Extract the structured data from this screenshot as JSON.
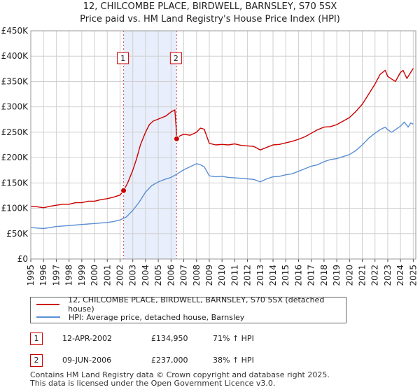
{
  "title": {
    "line1": "12, CHILCOMBE PLACE, BIRDWELL, BARNSLEY, S70 5SX",
    "line2": "Price paid vs. HM Land Registry's House Price Index (HPI)"
  },
  "legend": {
    "property": "12, CHILCOMBE PLACE, BIRDWELL, BARNSLEY, S70 5SX (detached house)",
    "hpi": "HPI: Average price, detached house, Barnsley"
  },
  "colors": {
    "property": "#cc0000",
    "hpi": "#5b8fd4",
    "shade": "#e8eefb",
    "grid": "#d0d0d0"
  },
  "transactions": [
    {
      "num": "1",
      "date": "12-APR-2002",
      "price": "£134,950",
      "hpi_change": "71% ↑ HPI"
    },
    {
      "num": "2",
      "date": "09-JUN-2006",
      "price": "£237,000",
      "hpi_change": "38% ↑ HPI"
    }
  ],
  "footer": {
    "line1": "Contains HM Land Registry data © Crown copyright and database right 2025.",
    "line2": "This data is licensed under the Open Government Licence v3.0."
  },
  "chart_data": {
    "type": "line",
    "title": "12, CHILCOMBE PLACE, BIRDWELL, BARNSLEY, S70 5SX",
    "subtitle": "Price paid vs. HM Land Registry's House Price Index (HPI)",
    "xlabel": "",
    "ylabel": "",
    "xlim": [
      1995,
      2025.2
    ],
    "ylim": [
      0,
      450000
    ],
    "x_ticks": [
      1995,
      1996,
      1997,
      1998,
      1999,
      2000,
      2001,
      2002,
      2003,
      2004,
      2005,
      2006,
      2007,
      2008,
      2009,
      2010,
      2011,
      2012,
      2013,
      2014,
      2015,
      2016,
      2017,
      2018,
      2019,
      2020,
      2021,
      2022,
      2023,
      2024,
      2025
    ],
    "y_ticks": [
      {
        "value": 0,
        "label": "£0"
      },
      {
        "value": 50000,
        "label": "£50K"
      },
      {
        "value": 100000,
        "label": "£100K"
      },
      {
        "value": 150000,
        "label": "£150K"
      },
      {
        "value": 200000,
        "label": "£200K"
      },
      {
        "value": 250000,
        "label": "£250K"
      },
      {
        "value": 300000,
        "label": "£300K"
      },
      {
        "value": 350000,
        "label": "£350K"
      },
      {
        "value": 400000,
        "label": "£400K"
      },
      {
        "value": 450000,
        "label": "£450K"
      }
    ],
    "grid": true,
    "shaded_range": [
      2002.28,
      2006.44
    ],
    "markers": [
      {
        "label": "1",
        "x": 2002.28,
        "y": 134950
      },
      {
        "label": "2",
        "x": 2006.44,
        "y": 237000
      }
    ],
    "series": [
      {
        "name": "12, CHILCOMBE PLACE, BIRDWELL, BARNSLEY, S70 5SX (detached house)",
        "x": [
          1995,
          1995.5,
          1996,
          1996.5,
          1997,
          1997.5,
          1998,
          1998.5,
          1999,
          1999.5,
          2000,
          2000.5,
          2001,
          2001.5,
          2002,
          2002.28,
          2002.6,
          2003,
          2003.3,
          2003.6,
          2004,
          2004.3,
          2004.6,
          2005,
          2005.3,
          2005.6,
          2006,
          2006.3,
          2006.4,
          2006.44,
          2006.7,
          2007,
          2007.5,
          2008,
          2008.3,
          2008.6,
          2009,
          2009.5,
          2010,
          2010.5,
          2011,
          2011.5,
          2012,
          2012.5,
          2013,
          2013.5,
          2014,
          2014.5,
          2015,
          2015.5,
          2016,
          2016.5,
          2017,
          2017.5,
          2018,
          2018.5,
          2019,
          2019.5,
          2020,
          2020.5,
          2021,
          2021.5,
          2022,
          2022.4,
          2022.8,
          2023,
          2023.3,
          2023.6,
          2024,
          2024.2,
          2024.5,
          2024.8,
          2025
        ],
        "values": [
          104000,
          103000,
          101000,
          104000,
          106000,
          108000,
          108000,
          111000,
          111000,
          114000,
          114000,
          117000,
          119000,
          122000,
          126000,
          134950,
          150000,
          175000,
          198000,
          225000,
          250000,
          265000,
          272000,
          276000,
          279000,
          282000,
          290000,
          294000,
          260000,
          237000,
          243000,
          246000,
          244000,
          250000,
          258000,
          256000,
          228000,
          225000,
          226000,
          225000,
          227000,
          224000,
          223000,
          222000,
          215000,
          220000,
          225000,
          226000,
          229000,
          232000,
          236000,
          241000,
          248000,
          255000,
          260000,
          261000,
          265000,
          272000,
          279000,
          291000,
          305000,
          325000,
          345000,
          364000,
          372000,
          360000,
          355000,
          350000,
          368000,
          372000,
          356000,
          368000,
          376000
        ]
      },
      {
        "name": "HPI: Average price, detached house, Barnsley",
        "x": [
          1995,
          1995.5,
          1996,
          1996.5,
          1997,
          1997.5,
          1998,
          1998.5,
          1999,
          1999.5,
          2000,
          2000.5,
          2001,
          2001.5,
          2002,
          2002.5,
          2003,
          2003.5,
          2004,
          2004.5,
          2005,
          2005.5,
          2006,
          2006.5,
          2007,
          2007.5,
          2008,
          2008.3,
          2008.6,
          2009,
          2009.5,
          2010,
          2010.5,
          2011,
          2011.5,
          2012,
          2012.5,
          2013,
          2013.5,
          2014,
          2014.5,
          2015,
          2015.5,
          2016,
          2016.5,
          2017,
          2017.5,
          2018,
          2018.5,
          2019,
          2019.5,
          2020,
          2020.5,
          2021,
          2021.5,
          2022,
          2022.4,
          2022.8,
          2023,
          2023.3,
          2023.6,
          2024,
          2024.3,
          2024.6,
          2024.8,
          2025
        ],
        "values": [
          62000,
          61000,
          60000,
          62000,
          64000,
          65000,
          66000,
          67000,
          68000,
          69000,
          70000,
          71000,
          72000,
          74000,
          77000,
          83000,
          96000,
          112000,
          132000,
          145000,
          152000,
          157000,
          161000,
          168000,
          176000,
          182000,
          188000,
          186000,
          182000,
          164000,
          162000,
          163000,
          161000,
          160000,
          159000,
          158000,
          157000,
          152000,
          158000,
          162000,
          163000,
          166000,
          168000,
          173000,
          178000,
          183000,
          186000,
          192000,
          196000,
          198000,
          202000,
          206000,
          214000,
          225000,
          238000,
          248000,
          255000,
          260000,
          255000,
          250000,
          255000,
          262000,
          270000,
          260000,
          268000,
          266000
        ]
      }
    ]
  }
}
